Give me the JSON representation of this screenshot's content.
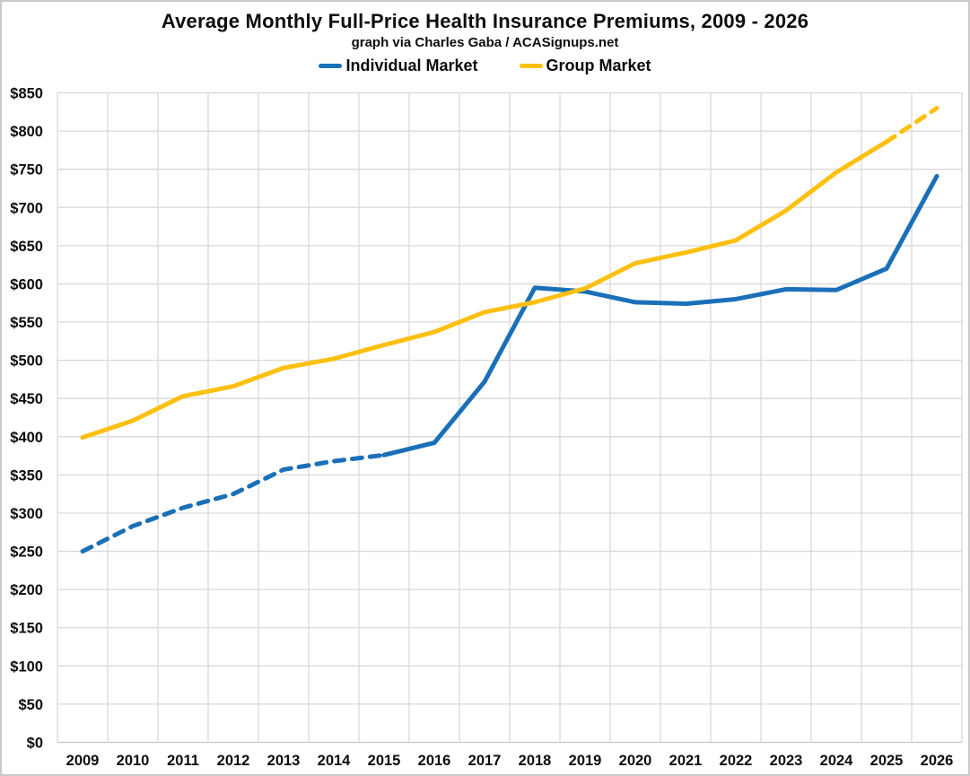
{
  "header": {
    "title": "Average Monthly Full-Price Health Insurance Premiums, 2009 - 2026",
    "subtitle": "graph via Charles Gaba / ACASignups.net"
  },
  "legend": {
    "items": [
      {
        "label": "Individual Market",
        "color": "#1a70b8"
      },
      {
        "label": "Group Market",
        "color": "#fdc010"
      }
    ]
  },
  "colors": {
    "individual_line": "#1a70b8",
    "group_line": "#fdc010",
    "gridline": "#d9d9d9",
    "text": "#0d0d0d",
    "background": "#ffffff"
  },
  "chart_data": {
    "type": "line",
    "title": "Average Monthly Full-Price Health Insurance Premiums, 2009 - 2026",
    "subtitle": "graph via Charles Gaba / ACASignups.net",
    "categories": [
      "2009",
      "2010",
      "2011",
      "2012",
      "2013",
      "2014",
      "2015",
      "2016",
      "2017",
      "2018",
      "2019",
      "2020",
      "2021",
      "2022",
      "2023",
      "2024",
      "2025",
      "2026"
    ],
    "series": [
      {
        "name": "Individual Market",
        "color": "#1a70b8",
        "values": [
          250,
          283,
          307,
          325,
          357,
          368,
          376,
          392,
          472,
          595,
          590,
          576,
          574,
          580,
          593,
          592,
          620,
          741
        ],
        "dashed_range": [
          0,
          6
        ],
        "solid_range": [
          6,
          17
        ]
      },
      {
        "name": "Group Market",
        "color": "#fdc010",
        "values": [
          399,
          421,
          453,
          466,
          490,
          502,
          520,
          537,
          563,
          576,
          594,
          627,
          641,
          657,
          696,
          746,
          786,
          830
        ],
        "dashed_range": [
          16,
          17
        ],
        "solid_range": [
          0,
          16
        ]
      }
    ],
    "ylim": [
      0,
      850
    ],
    "ytick_step": 50,
    "ytick_prefix": "$",
    "xlabel": "",
    "ylabel": "",
    "grid": true,
    "legend_position": "top"
  }
}
